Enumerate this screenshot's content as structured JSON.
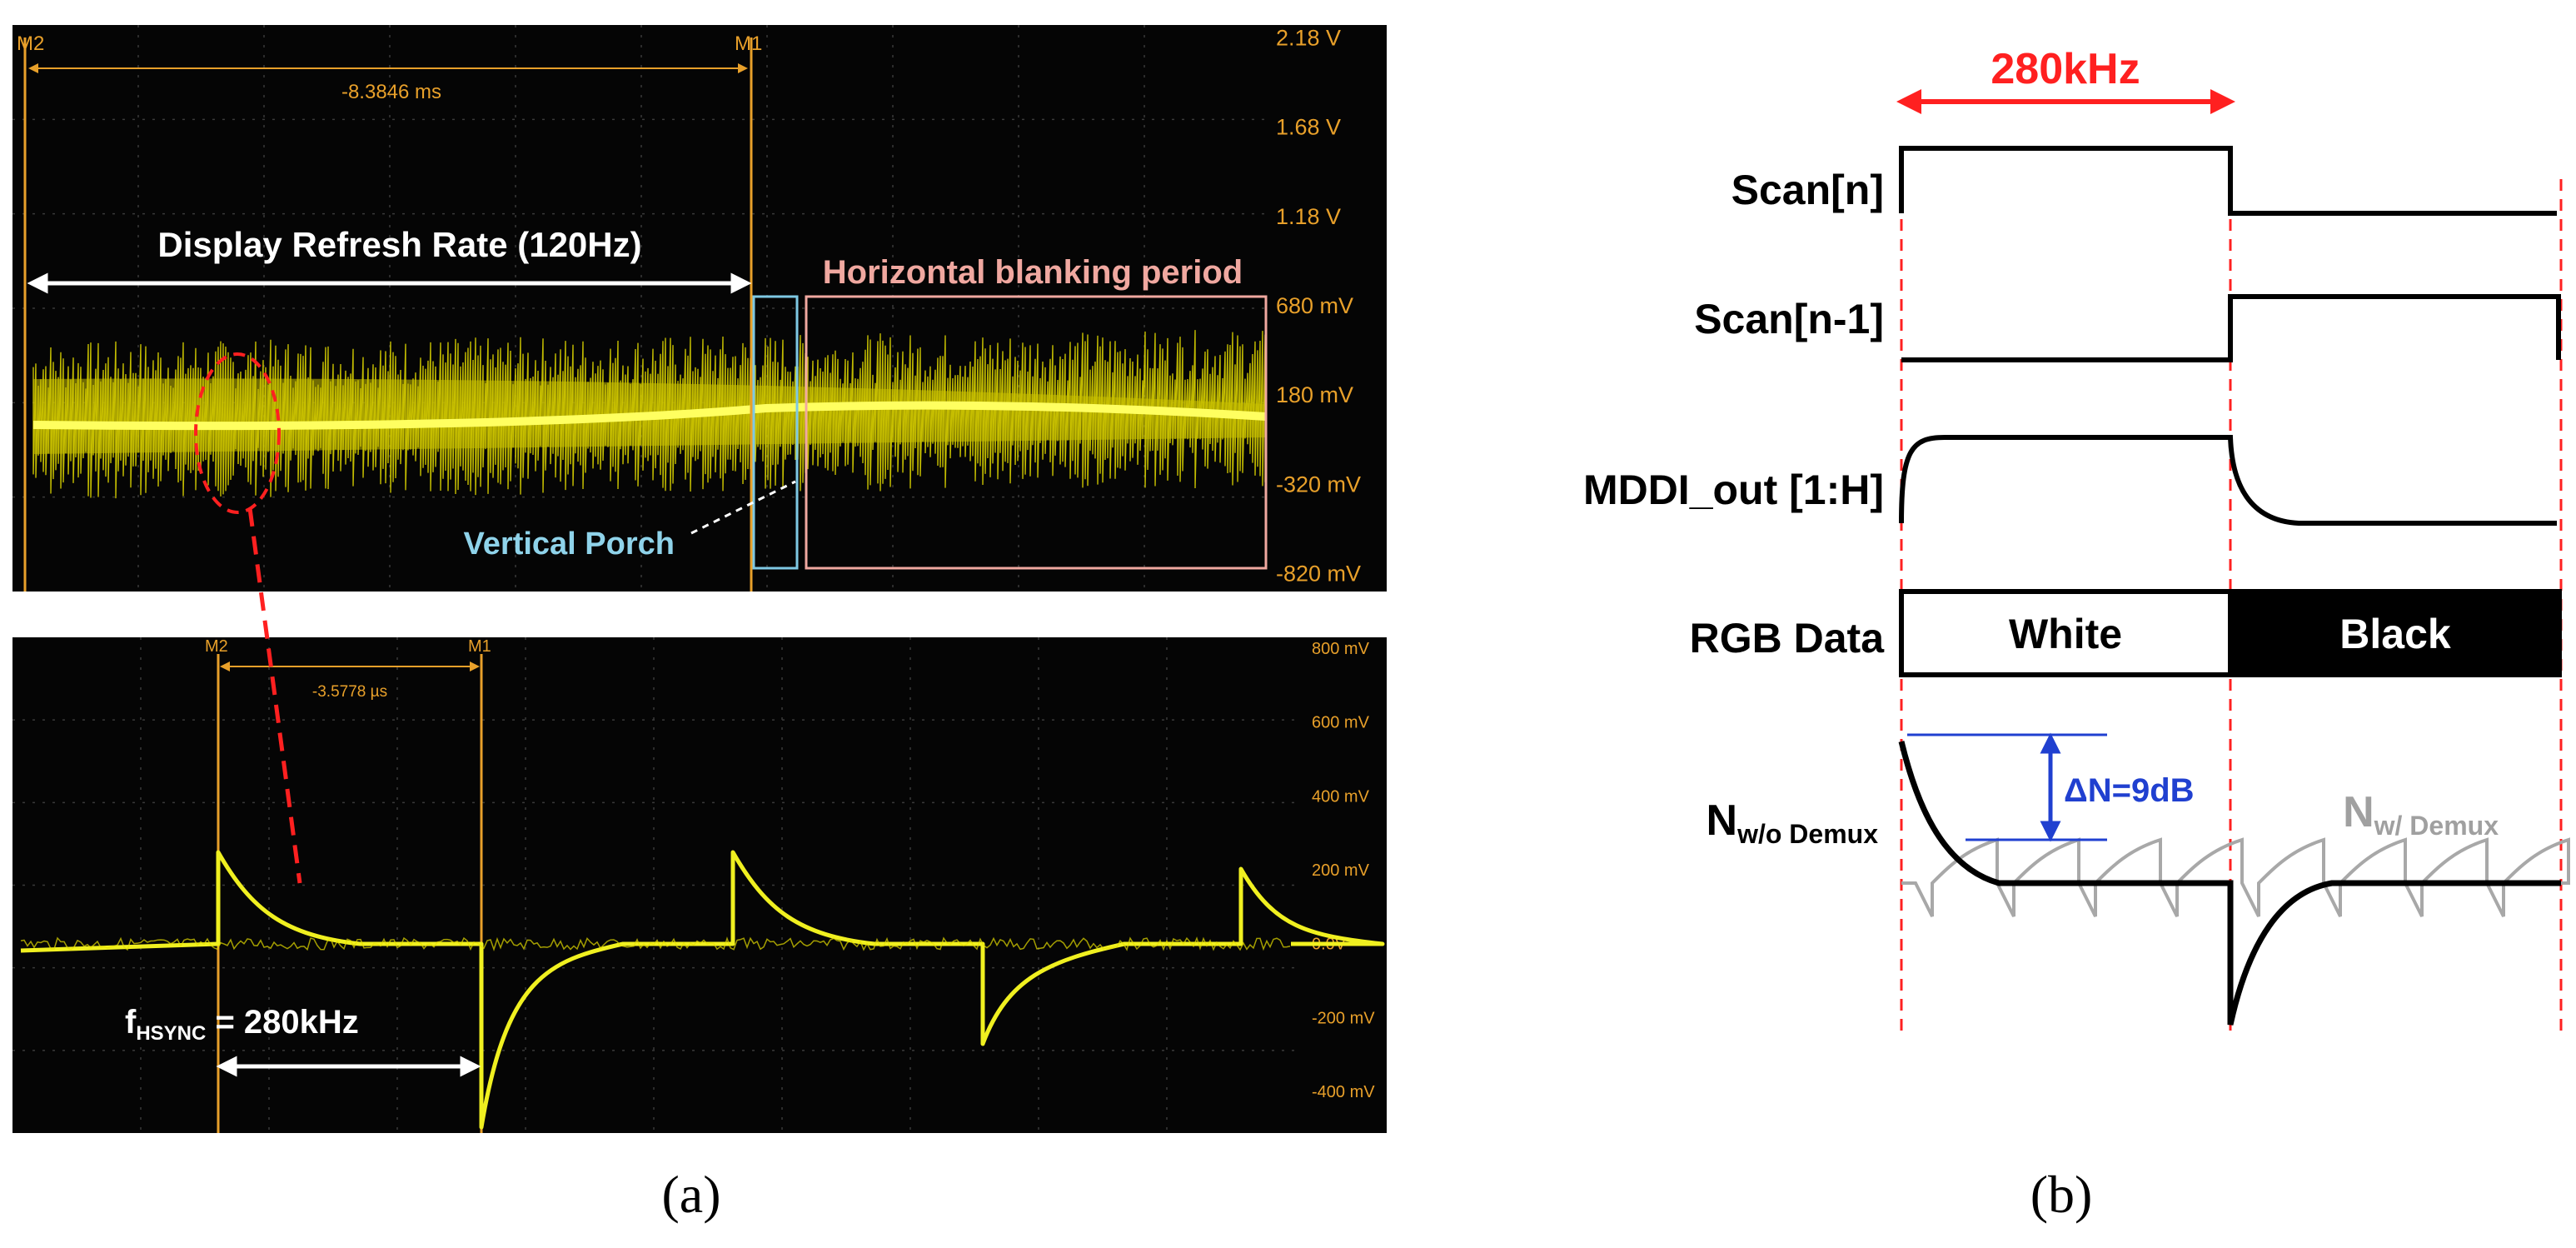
{
  "panel_a": {
    "top_scope": {
      "marker_left": "M2",
      "marker_right": "M1",
      "delta_time": "-8.3846 ms",
      "y_ticks": [
        "2.18 V",
        "1.68 V",
        "1.18 V",
        "680 mV",
        "180 mV",
        "-320 mV",
        "-820 mV"
      ],
      "refresh_label": "Display Refresh Rate (120Hz)",
      "blanking_label": "Horizontal blanking period",
      "porch_label": "Vertical Porch",
      "colors": {
        "trace": "#e0e020",
        "marker": "#e8a02a",
        "porch_box": "#7ec8e3",
        "blanking_box": "#f0a8a0",
        "porch_text": "#8fd3ea",
        "blanking_text": "#f0a8a0"
      }
    },
    "bottom_scope": {
      "marker_left": "M2",
      "marker_right": "M1",
      "delta_time": "-3.5778 µs",
      "y_ticks": [
        "800 mV",
        "600 mV",
        "400 mV",
        "200 mV",
        "0.0V",
        "-200 mV",
        "-400 mV"
      ],
      "hsync_prefix": "f",
      "hsync_sub": "HSYNC",
      "hsync_value": " = 280kHz"
    },
    "caption": "(a)"
  },
  "panel_b": {
    "freq_label": "280kHz",
    "signals": [
      "Scan[n]",
      "Scan[n-1]",
      "MDDI_out [1:H]",
      "RGB Data"
    ],
    "rgb_white": "White",
    "rgb_black": "Black",
    "noise_wo_main": "N",
    "noise_wo_sub": "w/o Demux",
    "noise_w_main": "N",
    "noise_w_sub": "w/ Demux",
    "delta_label": "ΔN=9dB",
    "colors": {
      "freq": "#ff2020",
      "delta": "#2040d0",
      "noise_w": "#a0a0a0",
      "guide": "#ff2020"
    },
    "caption": "(b)"
  }
}
